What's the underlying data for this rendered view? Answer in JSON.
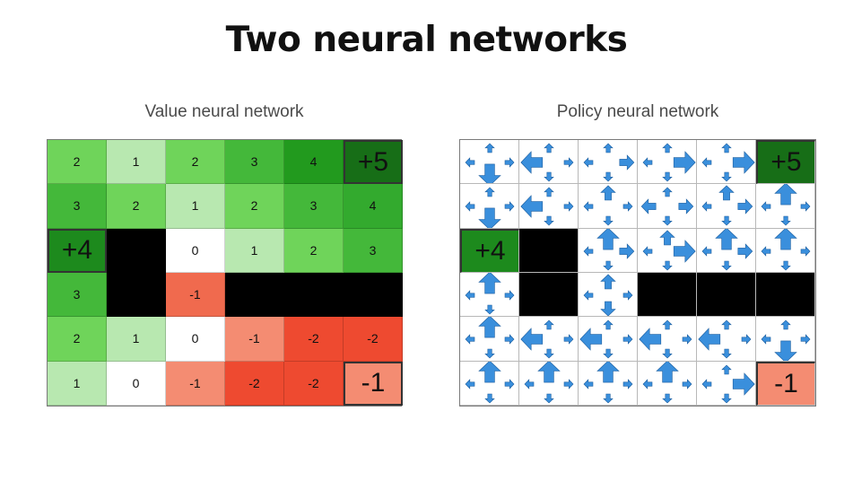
{
  "title": "Two neural networks",
  "value_network": {
    "label": "Value neural network",
    "cells": [
      [
        "2",
        "1",
        "2",
        "3",
        "4",
        "+5"
      ],
      [
        "3",
        "2",
        "1",
        "2",
        "3",
        "4"
      ],
      [
        "+4",
        "",
        "0",
        "1",
        "2",
        "3"
      ],
      [
        "3",
        "",
        "-1",
        "",
        "",
        ""
      ],
      [
        "2",
        "1",
        "0",
        "-1",
        "-2",
        "-2"
      ],
      [
        "1",
        "0",
        "-1",
        "-2",
        "-2",
        "-1"
      ]
    ],
    "types": [
      [
        "v",
        "v",
        "v",
        "v",
        "v",
        "t"
      ],
      [
        "v",
        "v",
        "v",
        "v",
        "v",
        "v"
      ],
      [
        "t",
        "w",
        "v",
        "v",
        "v",
        "v"
      ],
      [
        "v",
        "w",
        "v",
        "w",
        "w",
        "w"
      ],
      [
        "v",
        "v",
        "v",
        "v",
        "v",
        "v"
      ],
      [
        "v",
        "v",
        "v",
        "v",
        "v",
        "t"
      ]
    ],
    "colors": [
      [
        "#6fd45a",
        "#b8e8b0",
        "#6fd45a",
        "#44b83a",
        "#229a1e",
        "#176e17"
      ],
      [
        "#44b83a",
        "#6fd45a",
        "#b8e8b0",
        "#6fd45a",
        "#44b83a",
        "#33aa2e"
      ],
      [
        "#1d8a1d",
        "#000000",
        "#ffffff",
        "#b8e8b0",
        "#6fd45a",
        "#44b83a"
      ],
      [
        "#44b83a",
        "#000000",
        "#f06a4e",
        "#000000",
        "#000000",
        "#000000"
      ],
      [
        "#6fd45a",
        "#b8e8b0",
        "#ffffff",
        "#f48c72",
        "#ee4a30",
        "#ee4a30"
      ],
      [
        "#b8e8b0",
        "#ffffff",
        "#f48c72",
        "#ee4a30",
        "#ee4a30",
        "#f48c72"
      ]
    ]
  },
  "policy_network": {
    "label": "Policy neural network",
    "terminals": [
      {
        "row": 0,
        "col": 5,
        "text": "+5",
        "color": "#176e17"
      },
      {
        "row": 2,
        "col": 0,
        "text": "+4",
        "color": "#1d8a1d"
      },
      {
        "row": 5,
        "col": 5,
        "text": "-1",
        "color": "#f48c72"
      }
    ],
    "walls": [
      [
        2,
        1
      ],
      [
        3,
        1
      ],
      [
        3,
        3
      ],
      [
        3,
        4
      ],
      [
        3,
        5
      ]
    ],
    "arrow_color": "#3a8fdc",
    "arrows": [
      {
        "row": 0,
        "col": 0,
        "up": 1,
        "down": 3,
        "left": 1,
        "right": 1
      },
      {
        "row": 0,
        "col": 1,
        "up": 1,
        "down": 1,
        "left": 3,
        "right": 1
      },
      {
        "row": 0,
        "col": 2,
        "up": 1,
        "down": 1,
        "left": 1,
        "right": 2
      },
      {
        "row": 0,
        "col": 3,
        "up": 1,
        "down": 1,
        "left": 1,
        "right": 3
      },
      {
        "row": 0,
        "col": 4,
        "up": 1,
        "down": 1,
        "left": 1,
        "right": 3
      },
      {
        "row": 1,
        "col": 0,
        "up": 1,
        "down": 3,
        "left": 1,
        "right": 1
      },
      {
        "row": 1,
        "col": 1,
        "up": 1,
        "down": 1,
        "left": 3,
        "right": 1
      },
      {
        "row": 1,
        "col": 2,
        "up": 2,
        "down": 1,
        "left": 1,
        "right": 1
      },
      {
        "row": 1,
        "col": 3,
        "up": 1,
        "down": 1,
        "left": 2,
        "right": 2
      },
      {
        "row": 1,
        "col": 4,
        "up": 2,
        "down": 1,
        "left": 1,
        "right": 2
      },
      {
        "row": 1,
        "col": 5,
        "up": 3,
        "down": 1,
        "left": 1,
        "right": 1
      },
      {
        "row": 2,
        "col": 2,
        "up": 3,
        "down": 1,
        "left": 1,
        "right": 2
      },
      {
        "row": 2,
        "col": 3,
        "up": 2,
        "down": 1,
        "left": 1,
        "right": 3
      },
      {
        "row": 2,
        "col": 4,
        "up": 3,
        "down": 1,
        "left": 1,
        "right": 2
      },
      {
        "row": 2,
        "col": 5,
        "up": 3,
        "down": 1,
        "left": 1,
        "right": 1
      },
      {
        "row": 3,
        "col": 0,
        "up": 3,
        "down": 1,
        "left": 1,
        "right": 1
      },
      {
        "row": 3,
        "col": 2,
        "up": 2,
        "down": 2,
        "left": 1,
        "right": 1
      },
      {
        "row": 4,
        "col": 0,
        "up": 3,
        "down": 1,
        "left": 1,
        "right": 1
      },
      {
        "row": 4,
        "col": 1,
        "up": 1,
        "down": 1,
        "left": 3,
        "right": 1
      },
      {
        "row": 4,
        "col": 2,
        "up": 1,
        "down": 1,
        "left": 3,
        "right": 1
      },
      {
        "row": 4,
        "col": 3,
        "up": 1,
        "down": 1,
        "left": 3,
        "right": 1
      },
      {
        "row": 4,
        "col": 4,
        "up": 1,
        "down": 1,
        "left": 3,
        "right": 1
      },
      {
        "row": 4,
        "col": 5,
        "up": 1,
        "down": 3,
        "left": 1,
        "right": 1
      },
      {
        "row": 5,
        "col": 0,
        "up": 3,
        "down": 1,
        "left": 1,
        "right": 1
      },
      {
        "row": 5,
        "col": 1,
        "up": 3,
        "down": 1,
        "left": 1,
        "right": 1
      },
      {
        "row": 5,
        "col": 2,
        "up": 3,
        "down": 1,
        "left": 1,
        "right": 1
      },
      {
        "row": 5,
        "col": 3,
        "up": 3,
        "down": 1,
        "left": 1,
        "right": 1
      },
      {
        "row": 5,
        "col": 4,
        "up": 1,
        "down": 1,
        "left": 1,
        "right": 3
      }
    ]
  }
}
